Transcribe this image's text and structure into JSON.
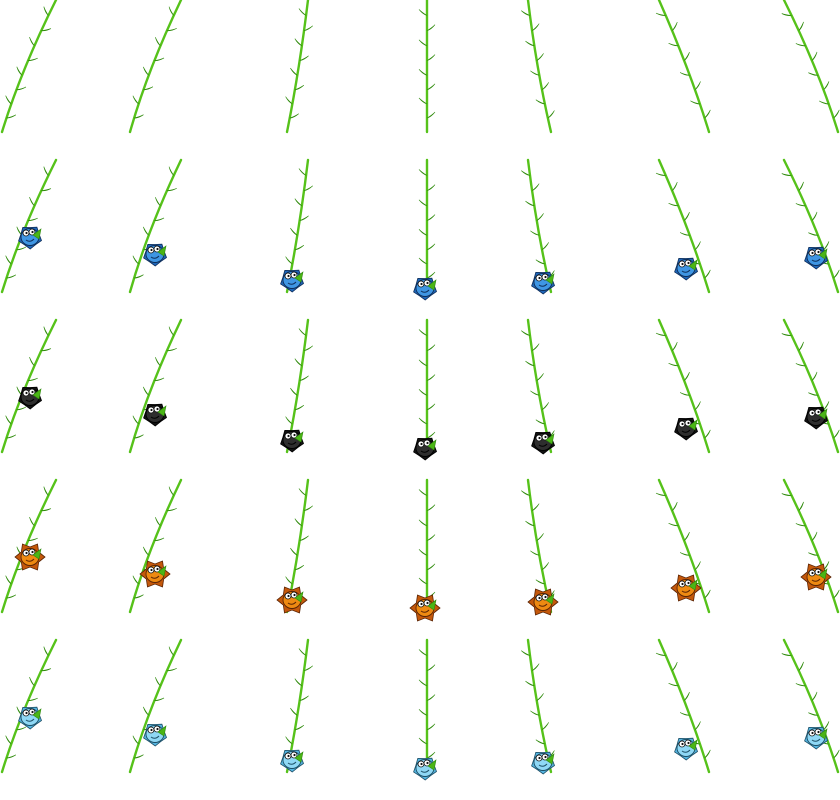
{
  "sheet": {
    "columns": 7,
    "rows": [
      {
        "name": "vine-only",
        "creature": null
      },
      {
        "name": "blue-creature",
        "creature": {
          "body": "#3f96e3",
          "shade": "#1f66b8",
          "ink": "#0e2e5a"
        }
      },
      {
        "name": "black-creature",
        "creature": {
          "body": "#2e2e2e",
          "shade": "#121212",
          "ink": "#000000"
        }
      },
      {
        "name": "orange-creature",
        "creature": {
          "body": "#ee8a12",
          "shade": "#c4580b",
          "ink": "#5a2405",
          "spiky": true
        }
      },
      {
        "name": "lightblue-creature",
        "creature": {
          "body": "#8fd8f5",
          "shade": "#55b4e0",
          "ink": "#1d4f66"
        }
      }
    ]
  },
  "colors": {
    "vine": "#56c21a",
    "leaf": "#4bb516",
    "leaf_dark": "#2f8a0c",
    "background": "#ffffff"
  }
}
